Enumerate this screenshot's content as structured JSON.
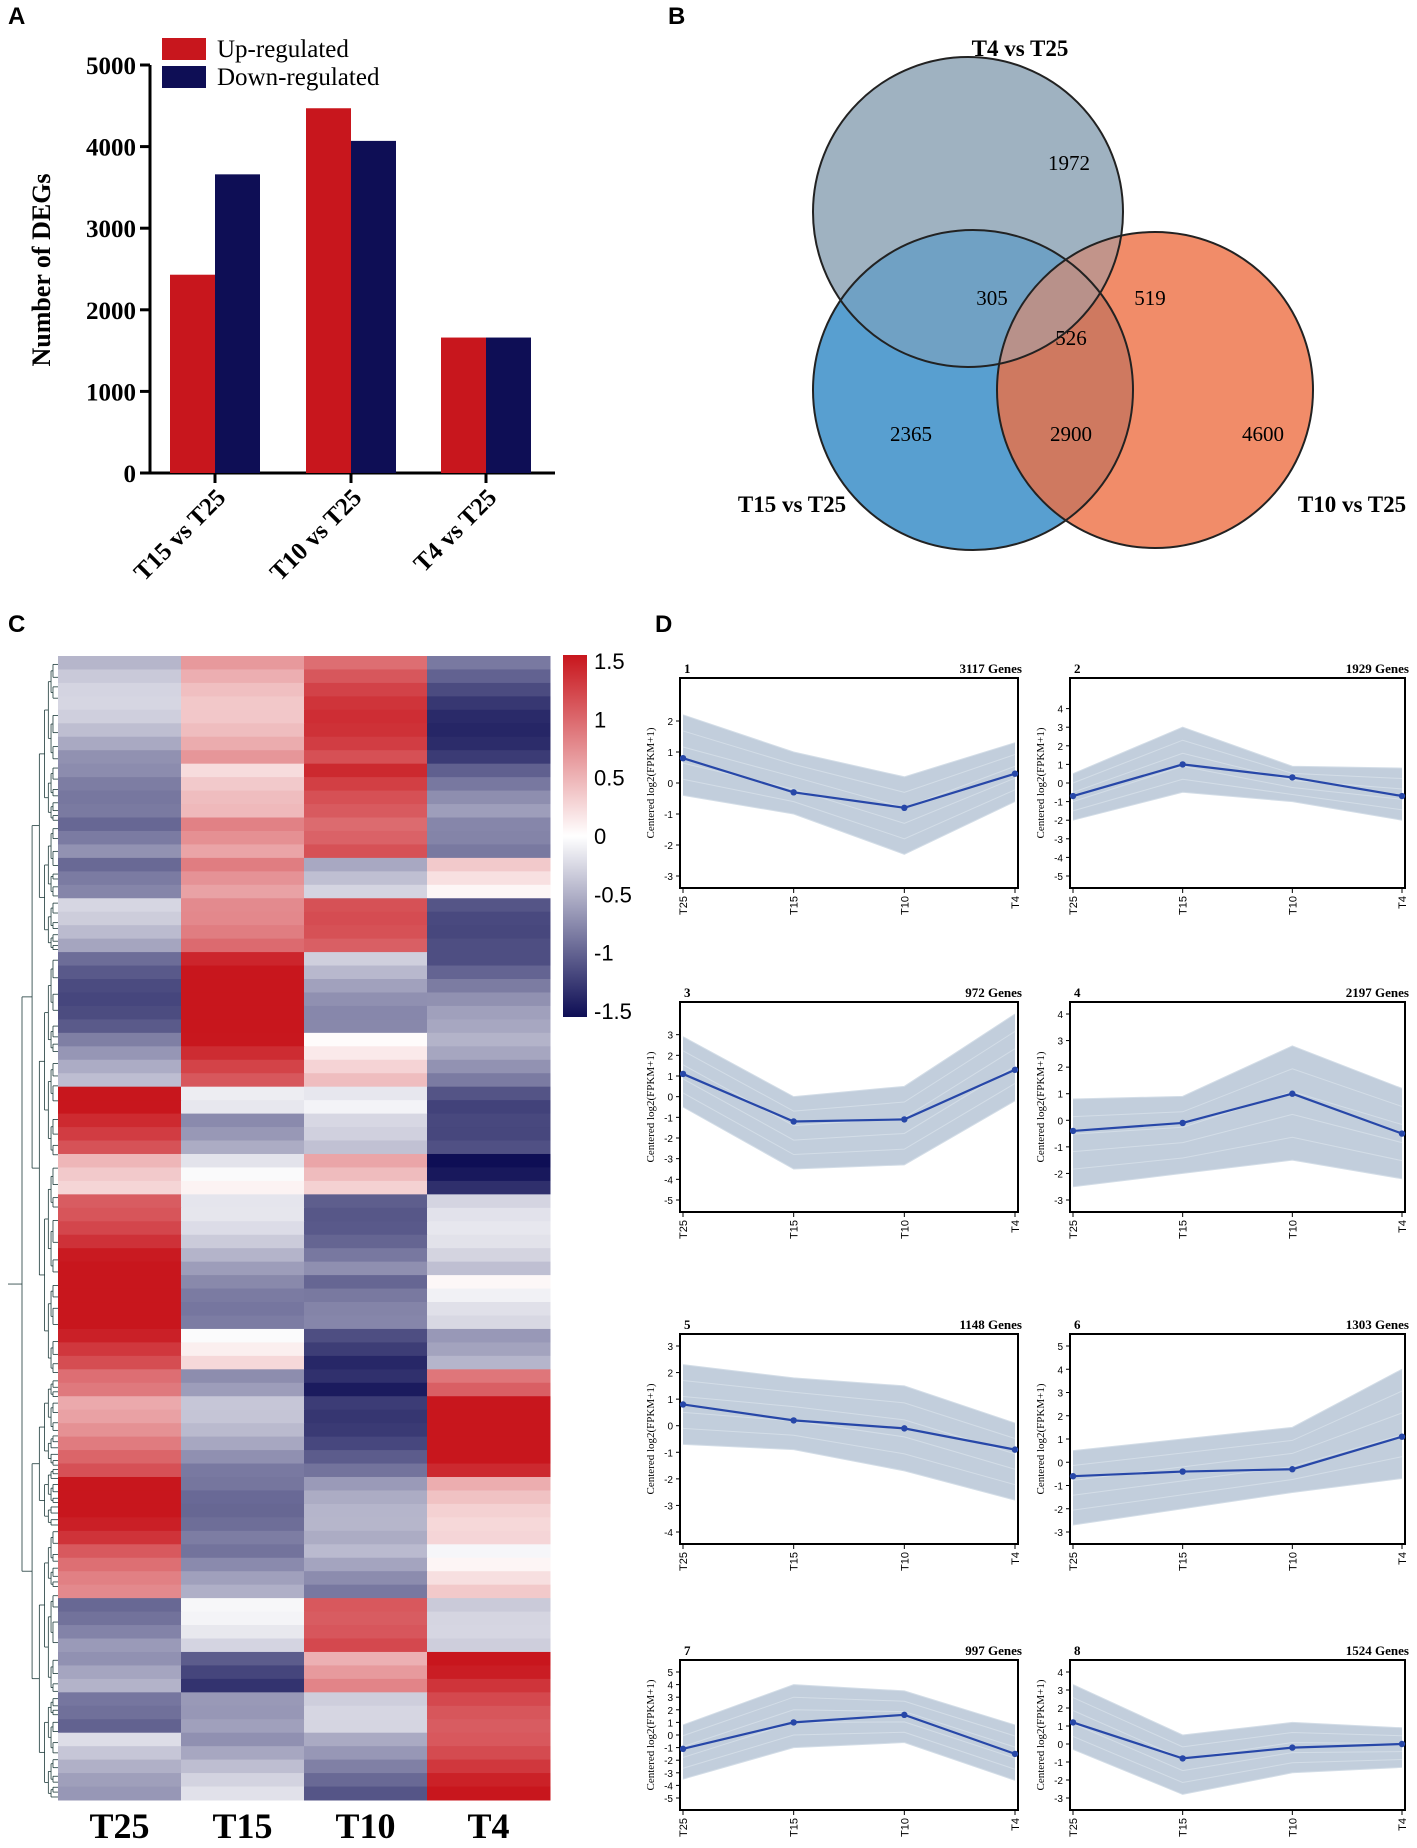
{
  "panel_labels": {
    "a": "A",
    "b": "B",
    "c": "C",
    "d": "D"
  },
  "colors": {
    "up": "#c8161d",
    "down": "#0e0e55",
    "venn_t4": "#9fb2c2",
    "venn_t15": "#3b8ec8",
    "venn_t10": "#ee6f43",
    "trend_line": "#2747a8",
    "trend_band": "#b7c6d6"
  },
  "chart_data": [
    {
      "type": "bar",
      "panel": "A",
      "title": "",
      "ylabel": "Number of DEGs",
      "xlabel": "",
      "ylim": [
        0,
        5000
      ],
      "yticks": [
        0,
        1000,
        2000,
        3000,
        4000,
        5000
      ],
      "categories": [
        "T15 vs T25",
        "T10 vs T25",
        "T4 vs T25"
      ],
      "series": [
        {
          "name": "Up-regulated",
          "values": [
            2430,
            4470,
            1660
          ]
        },
        {
          "name": "Down-regulated",
          "values": [
            3660,
            4070,
            1660
          ]
        }
      ],
      "legend": "top-left"
    },
    {
      "type": "venn",
      "panel": "B",
      "sets": [
        "T4 vs T25",
        "T15 vs T25",
        "T10 vs T25"
      ],
      "regions": {
        "T4_only": 1972,
        "T15_T4": 305,
        "T4_T10": 519,
        "all_three": 526,
        "T15_only": 2365,
        "T15_T10": 2900,
        "T10_only": 4600
      }
    },
    {
      "type": "heatmap",
      "panel": "C",
      "columns": [
        "T25",
        "T15",
        "T10",
        "T4"
      ],
      "color_scale": {
        "min": -1.5,
        "max": 1.5,
        "ticks": [
          "1.5",
          "1",
          "0.5",
          "0",
          "-0.5",
          "-1",
          "-1.5"
        ]
      },
      "blocks": [
        {
          "rows": 8,
          "values": [
            -0.6,
            0.7,
            1.0,
            -1.0
          ]
        },
        {
          "rows": 4,
          "values": [
            -0.5,
            0.1,
            1.4,
            -0.9
          ]
        },
        {
          "rows": 3,
          "values": [
            -0.7,
            0.5,
            1.3,
            -1.1
          ]
        },
        {
          "rows": 3,
          "values": [
            -1.1,
            0.9,
            -0.5,
            0.2
          ]
        },
        {
          "rows": 4,
          "values": [
            -0.6,
            1.1,
            0.8,
            -0.8
          ]
        },
        {
          "rows": 6,
          "values": [
            -0.8,
            1.4,
            -0.4,
            -0.9
          ]
        },
        {
          "rows": 4,
          "values": [
            -0.7,
            1.3,
            0.3,
            -0.8
          ]
        },
        {
          "rows": 2,
          "values": [
            1.3,
            0.2,
            -0.4,
            -0.9
          ]
        },
        {
          "rows": 3,
          "values": [
            1.1,
            -0.4,
            -0.6,
            -0.8
          ]
        },
        {
          "rows": 3,
          "values": [
            0.6,
            -0.2,
            0.5,
            -1.4
          ]
        },
        {
          "rows": 6,
          "values": [
            1.4,
            -0.5,
            -0.7,
            -0.5
          ]
        },
        {
          "rows": 4,
          "values": [
            1.4,
            -0.5,
            -1.1,
            0.1
          ]
        },
        {
          "rows": 3,
          "values": [
            1.3,
            0.2,
            -1.4,
            -0.3
          ]
        },
        {
          "rows": 2,
          "values": [
            1.2,
            -0.9,
            -1.2,
            0.9
          ]
        },
        {
          "rows": 6,
          "values": [
            0.9,
            -0.7,
            -0.9,
            1.3
          ]
        },
        {
          "rows": 5,
          "values": [
            1.2,
            -0.6,
            -0.8,
            0.6
          ]
        },
        {
          "rows": 4,
          "values": [
            1.1,
            -0.8,
            -0.6,
            0.2
          ]
        },
        {
          "rows": 4,
          "values": [
            -0.6,
            -0.4,
            1.4,
            -0.6
          ]
        },
        {
          "rows": 3,
          "values": [
            -0.8,
            -1.0,
            0.6,
            1.4
          ]
        },
        {
          "rows": 3,
          "values": [
            -1.2,
            -0.3,
            -0.6,
            1.4
          ]
        },
        {
          "rows": 5,
          "values": [
            -0.3,
            -0.5,
            -0.8,
            1.4
          ]
        }
      ]
    },
    {
      "type": "line",
      "panel": "D",
      "x": [
        "T25",
        "T15",
        "T10",
        "T4"
      ],
      "ylabel": "Centered log2(FPKM+1)",
      "clusters": [
        {
          "id": "1",
          "genes": "3117 Genes",
          "ylim": [
            -3,
            3
          ],
          "yticks": [
            2,
            1,
            0,
            -1,
            -2,
            -3
          ],
          "values": [
            0.8,
            -0.3,
            -0.8,
            0.3
          ],
          "band_hi": [
            2.2,
            1.0,
            0.2,
            1.3
          ],
          "band_lo": [
            -0.4,
            -1.0,
            -2.3,
            -0.6
          ]
        },
        {
          "id": "2",
          "genes": "1929 Genes",
          "ylim": [
            -5,
            5
          ],
          "yticks": [
            4,
            3,
            2,
            1,
            0,
            -1,
            -2,
            -3,
            -4,
            -5
          ],
          "values": [
            -0.7,
            1.0,
            0.3,
            -0.7
          ],
          "band_hi": [
            0.5,
            3.0,
            0.9,
            0.8
          ],
          "band_lo": [
            -2.0,
            -0.5,
            -1.0,
            -2.0
          ]
        },
        {
          "id": "3",
          "genes": "972 Genes",
          "ylim": [
            -5,
            4
          ],
          "yticks": [
            3,
            2,
            1,
            0,
            -1,
            -2,
            -3,
            -4,
            -5
          ],
          "values": [
            1.1,
            -1.2,
            -1.1,
            1.3
          ],
          "band_hi": [
            2.9,
            0.0,
            0.5,
            4.0
          ],
          "band_lo": [
            -0.5,
            -3.5,
            -3.3,
            -0.2
          ]
        },
        {
          "id": "4",
          "genes": "2197 Genes",
          "ylim": [
            -3,
            4
          ],
          "yticks": [
            4,
            3,
            2,
            1,
            0,
            -1,
            -2,
            -3
          ],
          "values": [
            -0.4,
            -0.1,
            1.0,
            -0.5
          ],
          "band_hi": [
            0.8,
            0.9,
            2.8,
            1.2
          ],
          "band_lo": [
            -2.5,
            -2.0,
            -1.5,
            -2.2
          ]
        },
        {
          "id": "5",
          "genes": "1148 Genes",
          "ylim": [
            -4,
            3
          ],
          "yticks": [
            3,
            2,
            1,
            0,
            -1,
            -2,
            -3,
            -4
          ],
          "values": [
            0.8,
            0.2,
            -0.1,
            -0.9
          ],
          "band_hi": [
            2.3,
            1.8,
            1.5,
            0.1
          ],
          "band_lo": [
            -0.7,
            -0.9,
            -1.7,
            -2.8
          ]
        },
        {
          "id": "6",
          "genes": "1303 Genes",
          "ylim": [
            -3,
            5
          ],
          "yticks": [
            5,
            4,
            3,
            2,
            1,
            0,
            -1,
            -2,
            -3
          ],
          "values": [
            -0.6,
            -0.4,
            -0.3,
            1.1
          ],
          "band_hi": [
            0.5,
            1.0,
            1.5,
            4.0
          ],
          "band_lo": [
            -2.7,
            -2.0,
            -1.3,
            -0.7
          ]
        },
        {
          "id": "7",
          "genes": "997 Genes",
          "ylim": [
            -5,
            5
          ],
          "yticks": [
            5,
            4,
            3,
            2,
            1,
            0,
            -1,
            -2,
            -3,
            -4,
            -5
          ],
          "values": [
            -1.1,
            1.0,
            1.6,
            -1.5
          ],
          "band_hi": [
            0.8,
            4.0,
            3.5,
            0.8
          ],
          "band_lo": [
            -3.5,
            -1.0,
            -0.6,
            -3.6
          ]
        },
        {
          "id": "8",
          "genes": "1524 Genes",
          "ylim": [
            -3,
            4
          ],
          "yticks": [
            4,
            3,
            2,
            1,
            0,
            -1,
            -2,
            -3
          ],
          "values": [
            1.2,
            -0.8,
            -0.2,
            0.0
          ],
          "band_hi": [
            3.3,
            0.5,
            1.2,
            0.9
          ],
          "band_lo": [
            -0.3,
            -2.8,
            -1.6,
            -1.3
          ]
        }
      ]
    }
  ]
}
